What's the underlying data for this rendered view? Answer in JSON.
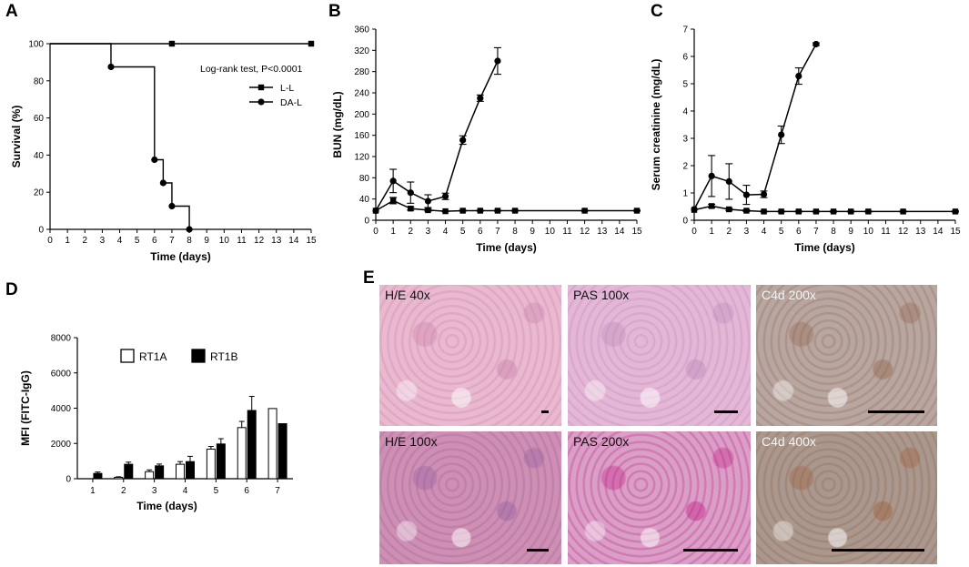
{
  "panels": {
    "A": {
      "label": "A",
      "chart_data": {
        "type": "line",
        "step": true,
        "xlabel": "Time (days)",
        "ylabel": "Survival (%)",
        "xlim": [
          0,
          15
        ],
        "ylim": [
          0,
          100
        ],
        "xticks": [
          0,
          1,
          2,
          3,
          4,
          5,
          6,
          7,
          8,
          9,
          10,
          11,
          12,
          13,
          14,
          15
        ],
        "yticks": [
          0,
          20,
          40,
          60,
          80,
          100
        ],
        "annotation": "Log-rank test, P<0.0001",
        "legend": "right",
        "series": [
          {
            "name": "L-L",
            "marker": "square",
            "x": [
              0,
              7,
              15
            ],
            "y": [
              100,
              100,
              100
            ]
          },
          {
            "name": "DA-L",
            "marker": "circle",
            "x": [
              0,
              3.5,
              6,
              6.5,
              7,
              8
            ],
            "y": [
              100,
              87.5,
              37.5,
              25,
              12.5,
              0
            ]
          }
        ]
      }
    },
    "B": {
      "label": "B",
      "chart_data": {
        "type": "line",
        "xlabel": "Time (days)",
        "ylabel": "BUN (mg/dL)",
        "xlim": [
          0,
          15
        ],
        "ylim": [
          0,
          360
        ],
        "xticks": [
          0,
          1,
          2,
          3,
          4,
          5,
          6,
          7,
          8,
          9,
          10,
          11,
          12,
          13,
          14,
          15
        ],
        "yticks": [
          0,
          40,
          80,
          120,
          160,
          200,
          240,
          280,
          320,
          360
        ],
        "series": [
          {
            "marker": "circle",
            "x": [
              0,
              1,
              2,
              3,
              4,
              5,
              6,
              7
            ],
            "y": [
              18,
              74,
              52,
              36,
              45,
              151,
              230,
              300
            ],
            "err": [
              0,
              22,
              20,
              12,
              6,
              8,
              6,
              25
            ]
          },
          {
            "marker": "square",
            "x": [
              0,
              1,
              2,
              3,
              4,
              5,
              6,
              7,
              8,
              12,
              15
            ],
            "y": [
              18,
              37,
              22,
              19,
              17,
              18,
              18,
              18,
              18,
              18,
              18
            ],
            "err": [
              0,
              6,
              3,
              2,
              1,
              1,
              1,
              1,
              1,
              1,
              1
            ]
          }
        ]
      }
    },
    "C": {
      "label": "C",
      "chart_data": {
        "type": "line",
        "xlabel": "Time (days)",
        "ylabel": "Serum creatinine (mg/dL)",
        "xlim": [
          0,
          15
        ],
        "ylim": [
          0,
          7
        ],
        "xticks": [
          0,
          1,
          2,
          3,
          4,
          5,
          6,
          7,
          8,
          9,
          10,
          11,
          12,
          13,
          14,
          15
        ],
        "yticks": [
          0,
          1,
          2,
          3,
          4,
          5,
          6,
          7
        ],
        "series": [
          {
            "marker": "circle",
            "x": [
              0,
              1,
              2,
              3,
              4,
              5,
              6,
              7
            ],
            "y": [
              0.4,
              1.62,
              1.42,
              0.93,
              0.95,
              3.13,
              5.28,
              6.45
            ],
            "err": [
              0,
              0.75,
              0.65,
              0.35,
              0.12,
              0.32,
              0.3,
              0.05
            ]
          },
          {
            "marker": "square",
            "x": [
              0,
              1,
              2,
              3,
              4,
              5,
              6,
              7,
              8,
              9,
              10,
              12,
              15
            ],
            "y": [
              0.38,
              0.52,
              0.4,
              0.35,
              0.32,
              0.32,
              0.32,
              0.32,
              0.32,
              0.32,
              0.32,
              0.32,
              0.32
            ],
            "err": [
              0,
              0.06,
              0.04,
              0.03,
              0.02,
              0.02,
              0.02,
              0.02,
              0.02,
              0.02,
              0.02,
              0.02,
              0.02
            ]
          }
        ]
      }
    },
    "D": {
      "label": "D",
      "chart_data": {
        "type": "bar",
        "xlabel": "Time (days)",
        "ylabel": "MFI (FITC-IgG)",
        "categories": [
          "1",
          "2",
          "3",
          "4",
          "5",
          "6",
          "7"
        ],
        "ylim": [
          0,
          8000
        ],
        "yticks": [
          0,
          2000,
          4000,
          6000,
          8000
        ],
        "legend": "top",
        "series": [
          {
            "name": "RT1A",
            "fill": "#ffffff",
            "values": [
              0,
              80,
              400,
              820,
              1680,
              2900,
              3980
            ],
            "err": [
              0,
              30,
              100,
              150,
              150,
              350,
              0
            ]
          },
          {
            "name": "RT1B",
            "fill": "#000000",
            "values": [
              300,
              820,
              730,
              970,
              1970,
              3870,
              3120
            ],
            "err": [
              80,
              120,
              100,
              300,
              300,
              800,
              0
            ]
          }
        ]
      }
    },
    "E": {
      "label": "E",
      "images": [
        {
          "caption": "H/E 40x",
          "bg": "#e8b9cf",
          "accent": "#c87aa6"
        },
        {
          "caption": "PAS 100x",
          "bg": "#e4b7d6",
          "accent": "#b883b5"
        },
        {
          "caption": "C4d 200x",
          "bg": "#b8a6a0",
          "accent": "#8e6046"
        },
        {
          "caption": "H/E 100x",
          "bg": "#cf8fb2",
          "accent": "#8e5a9e"
        },
        {
          "caption": "PAS 200x",
          "bg": "#d99fc6",
          "accent": "#c0127f"
        },
        {
          "caption": "C4d 400x",
          "bg": "#a8988f",
          "accent": "#9b5a32"
        }
      ]
    }
  }
}
